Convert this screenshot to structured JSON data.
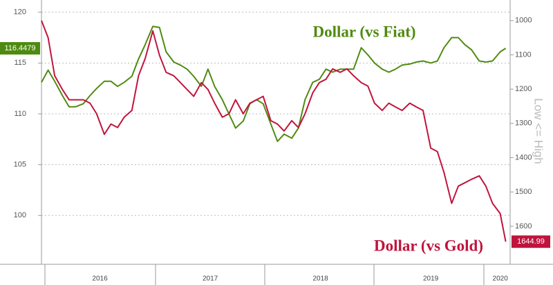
{
  "chart_data": {
    "type": "line",
    "x": [
      2015.97,
      2016.03,
      2016.09,
      2016.16,
      2016.22,
      2016.28,
      2016.35,
      2016.41,
      2016.47,
      2016.54,
      2016.6,
      2016.66,
      2016.72,
      2016.79,
      2016.85,
      2016.91,
      2016.98,
      2017.04,
      2017.1,
      2017.17,
      2017.23,
      2017.29,
      2017.35,
      2017.42,
      2017.48,
      2017.54,
      2017.61,
      2017.67,
      2017.73,
      2017.8,
      2017.86,
      2017.92,
      2017.98,
      2018.05,
      2018.11,
      2018.17,
      2018.24,
      2018.3,
      2018.36,
      2018.43,
      2018.49,
      2018.55,
      2018.61,
      2018.68,
      2018.74,
      2018.8,
      2018.87,
      2018.93,
      2018.99,
      2019.06,
      2019.12,
      2019.18,
      2019.24,
      2019.31,
      2019.37,
      2019.43,
      2019.5,
      2019.56,
      2019.62,
      2019.69,
      2019.75,
      2019.81,
      2019.87,
      2019.94,
      2020.0,
      2020.06,
      2020.13,
      2020.18
    ],
    "xlim": [
      2015.97,
      2020.22
    ],
    "xticks": [
      {
        "value": 2016.5,
        "label": "2016"
      },
      {
        "value": 2017.5,
        "label": "2017"
      },
      {
        "value": 2018.5,
        "label": "2018"
      },
      {
        "value": 2019.5,
        "label": "2019"
      },
      {
        "value": 2020.13,
        "label": "2020"
      }
    ],
    "ylim": [
      95.2,
      121.2
    ],
    "yticks": [
      100,
      105,
      110,
      115,
      120
    ],
    "y2lim": [
      940,
      1711
    ],
    "y2_inverted": true,
    "y2ticks": [
      1000,
      1100,
      1200,
      1300,
      1400,
      1500,
      1600
    ],
    "y2label": "Low <= High",
    "grid": true,
    "series": [
      {
        "name": "Dollar (vs Fiat)",
        "color": "#4f8a10",
        "values": [
          113.1,
          114.3,
          113.2,
          111.8,
          110.7,
          110.7,
          111.0,
          111.8,
          112.5,
          113.2,
          113.2,
          112.7,
          113.1,
          113.7,
          115.4,
          116.8,
          118.6,
          118.5,
          116.1,
          115.1,
          114.8,
          114.4,
          113.7,
          112.7,
          114.4,
          112.7,
          111.4,
          110.0,
          108.6,
          109.3,
          111.0,
          111.4,
          111.0,
          109.0,
          107.3,
          108.0,
          107.6,
          108.6,
          111.4,
          113.1,
          113.4,
          114.4,
          114.1,
          114.4,
          114.4,
          114.4,
          116.5,
          115.8,
          115.0,
          114.4,
          114.1,
          114.4,
          114.8,
          114.9,
          115.1,
          115.2,
          115.0,
          115.2,
          116.5,
          117.5,
          117.5,
          116.8,
          116.3,
          115.2,
          115.1,
          115.2,
          116.1,
          116.4479
        ]
      },
      {
        "name": "Dollar (vs Gold)",
        "color": "#c0143c",
        "axis": "y2",
        "values": [
          1000,
          1050,
          1161,
          1201,
          1231,
          1231,
          1231,
          1241,
          1272,
          1332,
          1302,
          1312,
          1282,
          1262,
          1161,
          1111,
          1030,
          1101,
          1151,
          1161,
          1181,
          1201,
          1221,
          1181,
          1201,
          1241,
          1282,
          1272,
          1231,
          1272,
          1241,
          1231,
          1221,
          1292,
          1302,
          1322,
          1292,
          1312,
          1272,
          1211,
          1181,
          1171,
          1141,
          1151,
          1141,
          1161,
          1181,
          1191,
          1241,
          1262,
          1241,
          1252,
          1262,
          1241,
          1252,
          1262,
          1372,
          1382,
          1443,
          1533,
          1483,
          1473,
          1463,
          1453,
          1483,
          1533,
          1563,
          1644.99
        ]
      }
    ]
  }
}
